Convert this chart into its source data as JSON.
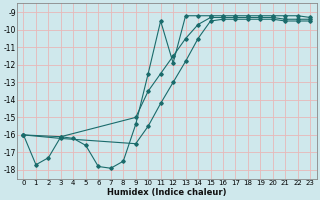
{
  "xlabel": "Humidex (Indice chaleur)",
  "background_color": "#cfe8ec",
  "grid_color": "#e8b8b8",
  "line_color": "#1a6b6b",
  "xlim": [
    -0.5,
    23.5
  ],
  "ylim": [
    -18.5,
    -8.5
  ],
  "xticks": [
    0,
    1,
    2,
    3,
    4,
    5,
    6,
    7,
    8,
    9,
    10,
    11,
    12,
    13,
    14,
    15,
    16,
    17,
    18,
    19,
    20,
    21,
    22,
    23
  ],
  "yticks": [
    -9,
    -10,
    -11,
    -12,
    -13,
    -14,
    -15,
    -16,
    -17,
    -18
  ],
  "series1_x": [
    0,
    1,
    2,
    3,
    4,
    5,
    6,
    7,
    8,
    9,
    10,
    11,
    12,
    13,
    14,
    15,
    16,
    17,
    18,
    19,
    20,
    21,
    22,
    23
  ],
  "series1_y": [
    -16,
    -17.7,
    -17.3,
    -16.1,
    -16.2,
    -16.6,
    -17.8,
    -17.9,
    -17.5,
    -15.4,
    -12.5,
    -9.5,
    -11.9,
    -9.2,
    -9.2,
    -9.2,
    -9.2,
    -9.2,
    -9.2,
    -9.2,
    -9.2,
    -9.2,
    -9.2,
    -9.3
  ],
  "series2_x": [
    0,
    3,
    9,
    10,
    11,
    12,
    13,
    14,
    15,
    16,
    17,
    18,
    19,
    20,
    21,
    22,
    23
  ],
  "series2_y": [
    -16,
    -16.1,
    -15.0,
    -13.5,
    -12.5,
    -11.5,
    -10.5,
    -9.7,
    -9.3,
    -9.3,
    -9.3,
    -9.3,
    -9.3,
    -9.3,
    -9.4,
    -9.4,
    -9.4
  ],
  "series3_x": [
    0,
    3,
    9,
    10,
    11,
    12,
    13,
    14,
    15,
    16,
    17,
    18,
    19,
    20,
    21,
    22,
    23
  ],
  "series3_y": [
    -16,
    -16.2,
    -16.5,
    -15.5,
    -14.2,
    -13.0,
    -11.8,
    -10.5,
    -9.5,
    -9.4,
    -9.4,
    -9.4,
    -9.4,
    -9.4,
    -9.5,
    -9.5,
    -9.5
  ]
}
